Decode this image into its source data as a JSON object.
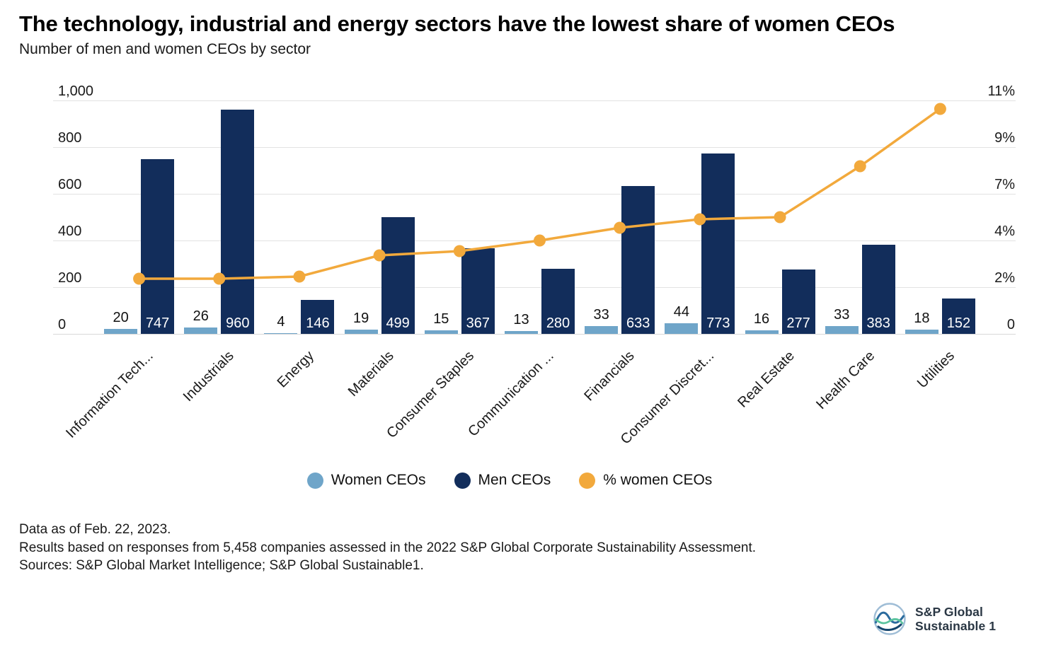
{
  "header": {
    "title": "The technology, industrial and energy sectors have the lowest share of women CEOs",
    "subtitle": "Number of men and women CEOs by sector"
  },
  "chart_data": {
    "type": "bar",
    "title": "Number of men and women CEOs by sector",
    "categories": [
      "Information Tech...",
      "Industrials",
      "Energy",
      "Materials",
      "Consumer Staples",
      "Communication ...",
      "Financials",
      "Consumer Discret...",
      "Real Estate",
      "Health Care",
      "Utilities"
    ],
    "series": [
      {
        "name": "Women CEOs",
        "type": "bar",
        "axis": "left",
        "color": "#6FA5C9",
        "values": [
          20,
          26,
          4,
          19,
          15,
          13,
          33,
          44,
          16,
          33,
          18
        ]
      },
      {
        "name": "Men CEOs",
        "type": "bar",
        "axis": "left",
        "color": "#122D5B",
        "values": [
          747,
          960,
          146,
          499,
          367,
          280,
          633,
          773,
          277,
          383,
          152
        ]
      },
      {
        "name": "% women CEOs",
        "type": "line",
        "axis": "right",
        "color": "#F2A93C",
        "values": [
          2.6,
          2.6,
          2.7,
          3.7,
          3.9,
          4.4,
          5.0,
          5.4,
          5.5,
          7.9,
          10.6
        ]
      }
    ],
    "left_axis": {
      "min": 0,
      "max": 1000,
      "tick_labels_top_to_bottom": [
        "1,000",
        "800",
        "600",
        "400",
        "200",
        "0"
      ]
    },
    "right_axis": {
      "min": 0,
      "max": 11,
      "tick_labels_top_to_bottom": [
        "11%",
        "9%",
        "7%",
        "4%",
        "2%",
        "0"
      ]
    },
    "grid": true,
    "legend_position": "bottom"
  },
  "legend": {
    "items": [
      {
        "label": "Women CEOs",
        "color": "#6FA5C9"
      },
      {
        "label": "Men CEOs",
        "color": "#122D5B"
      },
      {
        "label": "% women CEOs",
        "color": "#F2A93C"
      }
    ]
  },
  "footnotes": {
    "line1": "Data as of Feb. 22, 2023.",
    "line2": "Results based on responses from 5,458 companies assessed in the 2022 S&P Global Corporate Sustainability Assessment.",
    "line3": "Sources: S&P Global Market Intelligence; S&P Global Sustainable1."
  },
  "brand": {
    "line1": "S&P Global",
    "line2": "Sustainable 1"
  }
}
